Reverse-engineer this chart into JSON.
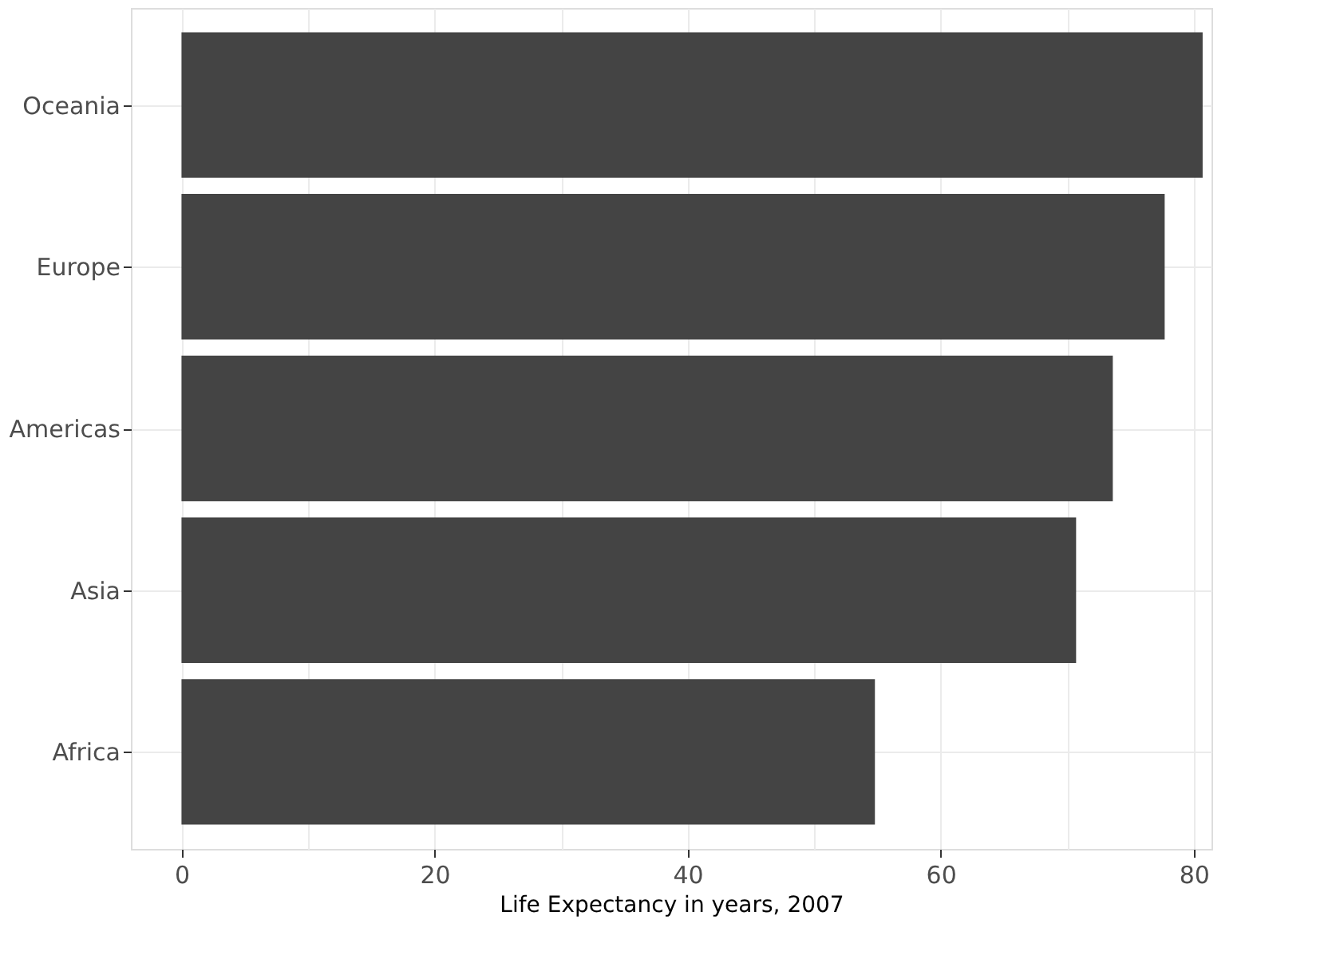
{
  "chart_data": {
    "type": "bar",
    "orientation": "horizontal",
    "xlabel": "Life Expectancy in years, 2007",
    "categories": [
      "Oceania",
      "Europe",
      "Americas",
      "Asia",
      "Africa"
    ],
    "values": [
      80.7,
      77.7,
      73.6,
      70.7,
      54.8
    ],
    "color": "#444444",
    "xlim": [
      -4,
      81.4
    ],
    "xticks": [
      0,
      {
        "value": 10,
        "label": null
      },
      20,
      {
        "value": 30,
        "label": null
      },
      40,
      {
        "value": 50,
        "label": null
      },
      60,
      {
        "value": 70,
        "label": null
      },
      80
    ],
    "grid": true
  }
}
